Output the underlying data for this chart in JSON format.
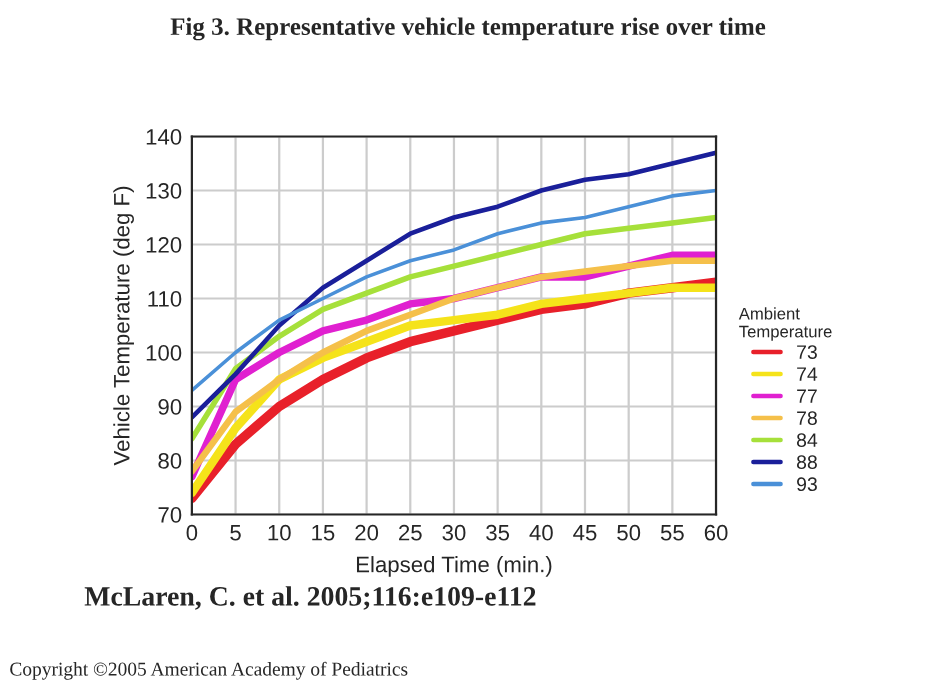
{
  "chart_data": {
    "type": "line",
    "title": "Fig 3. Representative vehicle temperature rise over time",
    "xlabel": "Elapsed Time (min.)",
    "ylabel": "Vehicle Temperature (deg F)",
    "legend_title": "Ambient\nTemperature",
    "x": [
      0,
      5,
      10,
      15,
      20,
      25,
      30,
      35,
      40,
      45,
      50,
      55,
      60
    ],
    "series": [
      {
        "name": "73",
        "color": "#e8202a",
        "values": [
          73,
          83,
          90,
          95,
          99,
          102,
          104,
          106,
          108,
          109,
          111,
          112,
          113
        ]
      },
      {
        "name": "74",
        "color": "#f5e31a",
        "values": [
          74,
          86,
          95,
          99,
          102,
          105,
          106,
          107,
          109,
          110,
          111,
          112,
          112
        ]
      },
      {
        "name": "77",
        "color": "#e020d0",
        "values": [
          77,
          95,
          100,
          104,
          106,
          109,
          110,
          112,
          114,
          114,
          116,
          118,
          118
        ]
      },
      {
        "name": "78",
        "color": "#f5c04a",
        "values": [
          78,
          89,
          95,
          100,
          104,
          107,
          110,
          112,
          114,
          115,
          116,
          117,
          117
        ]
      },
      {
        "name": "84",
        "color": "#a6e03a",
        "values": [
          84,
          97,
          103,
          108,
          111,
          114,
          116,
          118,
          120,
          122,
          123,
          124,
          125
        ]
      },
      {
        "name": "88",
        "color": "#1a1f9a",
        "values": [
          88,
          96,
          105,
          112,
          117,
          122,
          125,
          127,
          130,
          132,
          133,
          135,
          137
        ]
      },
      {
        "name": "93",
        "color": "#4a90d8",
        "values": [
          93,
          100,
          106,
          110,
          114,
          117,
          119,
          122,
          124,
          125,
          127,
          129,
          130
        ]
      }
    ],
    "xlim": [
      0,
      60
    ],
    "xticks": [
      0,
      5,
      10,
      15,
      20,
      25,
      30,
      35,
      40,
      45,
      50,
      55,
      60
    ],
    "ylim": [
      70,
      140
    ],
    "yticks": [
      70,
      80,
      90,
      100,
      110,
      120,
      130,
      140
    ],
    "grid": true,
    "legend": "right",
    "marker": "none",
    "line_style": "solid",
    "annotations": [
      "McLaren, C. et al. 2005;116:e109-e112",
      "Copyright ©2005 American Academy of Pediatrics"
    ]
  }
}
